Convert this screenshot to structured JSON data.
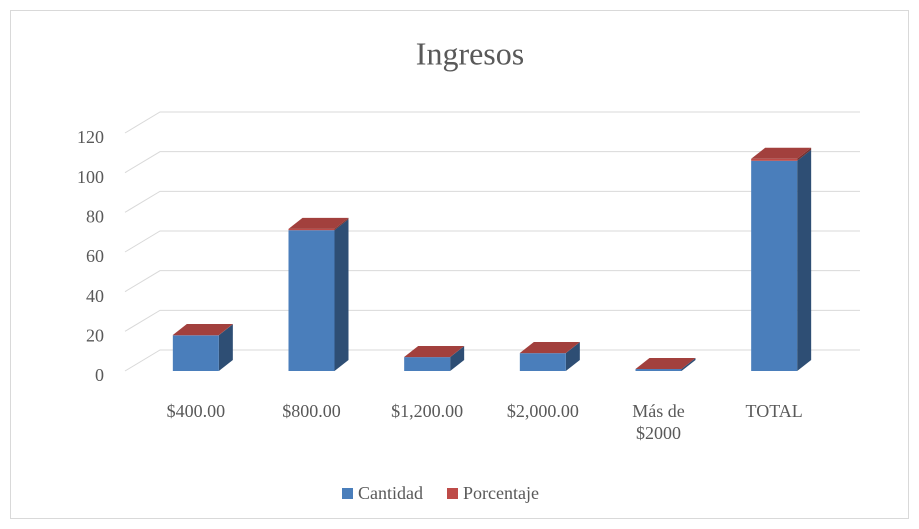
{
  "chart_data": {
    "type": "bar3d_stacked",
    "title": "Ingresos",
    "categories": [
      "$400.00",
      "$800.00",
      "$1,200.00",
      "$2,000.00",
      "Más de $2000",
      "TOTAL"
    ],
    "series": [
      {
        "name": "Cantidad",
        "color": "#4a7ebb",
        "values": [
          18,
          71,
          7,
          9,
          1,
          106
        ]
      },
      {
        "name": "Porcentaje",
        "color": "#be4b48",
        "values": [
          0.17,
          0.67,
          0.07,
          0.08,
          0.01,
          1
        ]
      }
    ],
    "ylim": [
      0,
      120
    ],
    "yticks": [
      0,
      20,
      40,
      60,
      80,
      100,
      120
    ],
    "grid": true,
    "legend": "bottom"
  }
}
